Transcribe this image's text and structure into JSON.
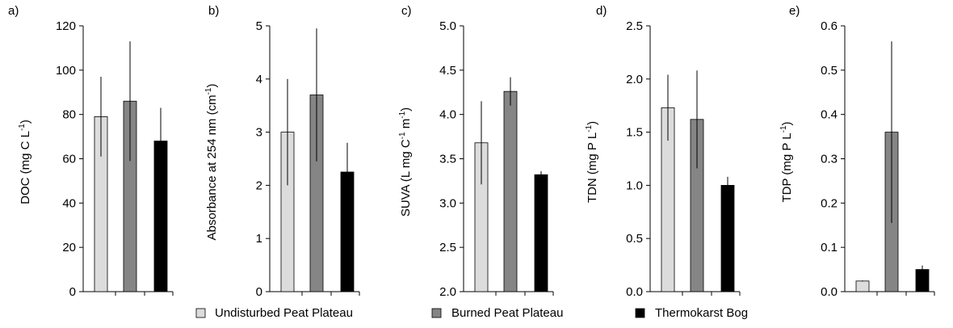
{
  "chart_data": [
    {
      "type": "bar",
      "panel_label": "a)",
      "categories": [
        "Undisturbed Peat Plateau",
        "Burned Peat Plateau",
        "Thermokarst Bog"
      ],
      "values": [
        79,
        86,
        68
      ],
      "error": [
        18,
        27,
        15
      ],
      "ylabel": {
        "before": "DOC (mg C L",
        "sup": "-1",
        "after": ")"
      },
      "ylim": [
        0,
        120
      ],
      "yticks": [
        "0",
        "20",
        "40",
        "60",
        "80",
        "100",
        "120"
      ],
      "grid": false
    },
    {
      "type": "bar",
      "panel_label": "b)",
      "categories": [
        "Undisturbed Peat Plateau",
        "Burned Peat Plateau",
        "Thermokarst Bog"
      ],
      "values": [
        3.0,
        3.7,
        2.25
      ],
      "error": [
        1.0,
        1.25,
        0.55
      ],
      "ylabel": {
        "before": "Absorbance at 254 nm (cm",
        "sup": "-1",
        "after": ")"
      },
      "ylim": [
        0,
        5
      ],
      "yticks": [
        "0",
        "1",
        "2",
        "3",
        "4",
        "5"
      ],
      "grid": false
    },
    {
      "type": "bar",
      "panel_label": "c)",
      "categories": [
        "Undisturbed Peat Plateau",
        "Burned Peat Plateau",
        "Thermokarst Bog"
      ],
      "values": [
        3.68,
        4.26,
        3.32
      ],
      "error": [
        0.47,
        0.16,
        0.04
      ],
      "ylabel": {
        "before": "SUVA (L mg C",
        "sup": "-1",
        "mid": " m",
        "sup2": "-1",
        "after": ")"
      },
      "ylim": [
        2.0,
        5.0
      ],
      "yticks": [
        "2.0",
        "2.5",
        "3.0",
        "3.5",
        "4.0",
        "4.5",
        "5.0"
      ],
      "grid": false
    },
    {
      "type": "bar",
      "panel_label": "d)",
      "categories": [
        "Undisturbed Peat Plateau",
        "Burned Peat Plateau",
        "Thermokarst Bog"
      ],
      "values": [
        1.73,
        1.62,
        1.0
      ],
      "error": [
        0.31,
        0.46,
        0.08
      ],
      "ylabel": {
        "before": "TDN  (mg P L",
        "sup": "-1",
        "after": ")"
      },
      "ylim": [
        0,
        2.5
      ],
      "yticks": [
        "0.0",
        "0.5",
        "1.0",
        "1.5",
        "2.0",
        "2.5"
      ],
      "grid": false
    },
    {
      "type": "bar",
      "panel_label": "e)",
      "categories": [
        "Undisturbed Peat Plateau",
        "Burned Peat Plateau",
        "Thermokarst Bog"
      ],
      "values": [
        0.024,
        0.36,
        0.05
      ],
      "error": [
        0.001,
        0.205,
        0.009
      ],
      "ylabel": {
        "before": "TDP  (mg P L",
        "sup": "-1",
        "after": ")"
      },
      "ylim": [
        0,
        0.6
      ],
      "yticks": [
        "0.0",
        "0.1",
        "0.2",
        "0.3",
        "0.4",
        "0.5",
        "0.6"
      ],
      "grid": false
    }
  ],
  "legend": {
    "placement": "bottom",
    "items": [
      {
        "label": "Undisturbed Peat Plateau",
        "color": "#dcdcdc"
      },
      {
        "label": "Burned Peat Plateau",
        "color": "#858585"
      },
      {
        "label": "Thermokarst Bog",
        "color": "#000000"
      }
    ]
  },
  "colors": {
    "bars": [
      "#dcdcdc",
      "#858585",
      "#000000"
    ],
    "axis": "#000000"
  }
}
